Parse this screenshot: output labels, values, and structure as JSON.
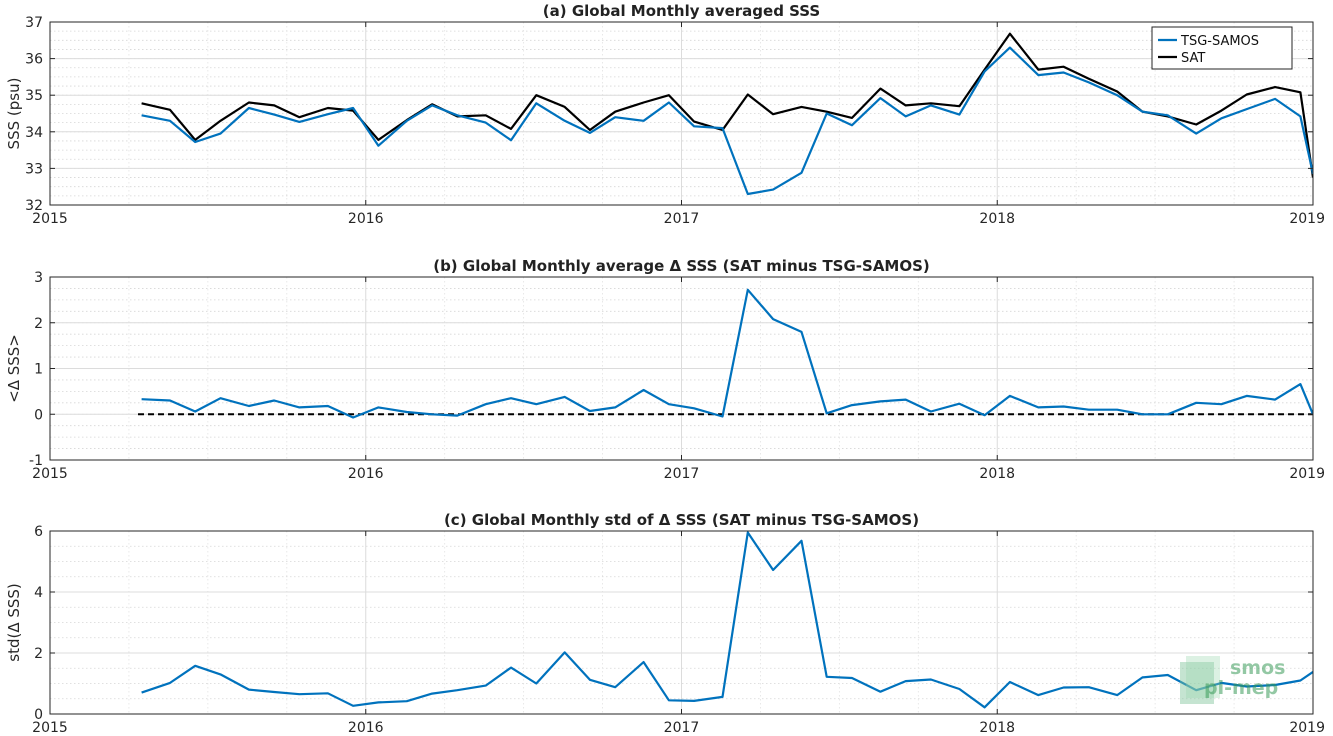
{
  "chart_data": [
    {
      "type": "line",
      "title": "(a) Global Monthly averaged SSS",
      "xlabel": "",
      "ylabel": "SSS (psu)",
      "xlim": [
        2015,
        2019
      ],
      "ylim": [
        32,
        37
      ],
      "xticks": [
        2015,
        2016,
        2017,
        2018,
        2019
      ],
      "yticks": [
        32,
        33,
        34,
        35,
        36,
        37
      ],
      "grid": true,
      "legend": "top-right",
      "x": [
        2015.29,
        2015.38,
        2015.46,
        2015.54,
        2015.63,
        2015.71,
        2015.79,
        2015.88,
        2015.96,
        2016.04,
        2016.13,
        2016.21,
        2016.29,
        2016.38,
        2016.46,
        2016.54,
        2016.63,
        2016.71,
        2016.79,
        2016.88,
        2016.96,
        2017.04,
        2017.13,
        2017.21,
        2017.29,
        2017.38,
        2017.46,
        2017.54,
        2017.63,
        2017.71,
        2017.79,
        2017.88,
        2017.96,
        2018.04,
        2018.13,
        2018.21,
        2018.29,
        2018.38,
        2018.46,
        2018.54,
        2018.63,
        2018.71,
        2018.79,
        2018.88,
        2018.96,
        2019.0
      ],
      "series": [
        {
          "name": "TSG-SAMOS",
          "color": "#0072BD",
          "values": [
            34.45,
            34.3,
            33.72,
            33.95,
            34.65,
            34.47,
            34.27,
            34.48,
            34.65,
            33.62,
            34.3,
            34.72,
            34.45,
            34.25,
            33.77,
            34.78,
            34.3,
            33.97,
            34.4,
            34.3,
            34.8,
            34.15,
            34.1,
            32.3,
            32.42,
            32.88,
            34.5,
            34.18,
            34.92,
            34.42,
            34.72,
            34.47,
            35.65,
            36.3,
            35.55,
            35.62,
            35.35,
            35.0,
            34.55,
            34.45,
            33.95,
            34.37,
            34.62,
            34.9,
            34.42,
            32.85
          ]
        },
        {
          "name": "SAT",
          "color": "#000000",
          "values": [
            34.78,
            34.6,
            33.78,
            34.3,
            34.8,
            34.72,
            34.4,
            34.65,
            34.58,
            33.78,
            34.32,
            34.75,
            34.42,
            34.45,
            34.08,
            35.0,
            34.68,
            34.05,
            34.55,
            34.8,
            35.0,
            34.28,
            34.05,
            35.02,
            34.48,
            34.68,
            34.55,
            34.38,
            35.18,
            34.72,
            34.78,
            34.7,
            35.7,
            36.68,
            35.7,
            35.78,
            35.45,
            35.1,
            34.55,
            34.42,
            34.2,
            34.58,
            35.02,
            35.22,
            35.08,
            32.75
          ]
        }
      ]
    },
    {
      "type": "line",
      "title": "(b) Global Monthly average Δ SSS (SAT minus TSG-SAMOS)",
      "xlabel": "",
      "ylabel": "<Δ SSS>",
      "xlim": [
        2015,
        2019
      ],
      "ylim": [
        -1,
        3
      ],
      "xticks": [
        2015,
        2016,
        2017,
        2018,
        2019
      ],
      "yticks": [
        -1,
        0,
        1,
        2,
        3
      ],
      "grid": true,
      "zero_line": 0,
      "x": [
        2015.29,
        2015.38,
        2015.46,
        2015.54,
        2015.63,
        2015.71,
        2015.79,
        2015.88,
        2015.96,
        2016.04,
        2016.13,
        2016.21,
        2016.29,
        2016.38,
        2016.46,
        2016.54,
        2016.63,
        2016.71,
        2016.79,
        2016.88,
        2016.96,
        2017.04,
        2017.13,
        2017.21,
        2017.29,
        2017.38,
        2017.46,
        2017.54,
        2017.63,
        2017.71,
        2017.79,
        2017.88,
        2017.96,
        2018.04,
        2018.13,
        2018.21,
        2018.29,
        2018.38,
        2018.46,
        2018.54,
        2018.63,
        2018.71,
        2018.79,
        2018.88,
        2018.96,
        2019.0
      ],
      "series": [
        {
          "color": "#0072BD",
          "values": [
            0.33,
            0.3,
            0.06,
            0.35,
            0.18,
            0.3,
            0.15,
            0.18,
            -0.07,
            0.15,
            0.05,
            0.0,
            -0.03,
            0.22,
            0.35,
            0.22,
            0.38,
            0.07,
            0.15,
            0.53,
            0.22,
            0.13,
            -0.05,
            2.72,
            2.08,
            1.8,
            0.02,
            0.2,
            0.28,
            0.32,
            0.06,
            0.23,
            -0.02,
            0.4,
            0.15,
            0.17,
            0.1,
            0.1,
            0.0,
            0.0,
            0.25,
            0.22,
            0.4,
            0.32,
            0.66,
            0.0
          ]
        }
      ]
    },
    {
      "type": "line",
      "title": "(c) Global Monthly std of Δ SSS (SAT minus TSG-SAMOS)",
      "xlabel": "",
      "ylabel": "std(Δ SSS)",
      "xlim": [
        2015,
        2019
      ],
      "ylim": [
        0,
        6
      ],
      "xticks": [
        2015,
        2016,
        2017,
        2018,
        2019
      ],
      "yticks": [
        0,
        2,
        4,
        6
      ],
      "grid": true,
      "x": [
        2015.29,
        2015.38,
        2015.46,
        2015.54,
        2015.63,
        2015.71,
        2015.79,
        2015.88,
        2015.96,
        2016.04,
        2016.13,
        2016.21,
        2016.29,
        2016.38,
        2016.46,
        2016.54,
        2016.63,
        2016.71,
        2016.79,
        2016.88,
        2016.96,
        2017.04,
        2017.13,
        2017.21,
        2017.29,
        2017.38,
        2017.46,
        2017.54,
        2017.63,
        2017.71,
        2017.79,
        2017.88,
        2017.96,
        2018.04,
        2018.13,
        2018.21,
        2018.29,
        2018.38,
        2018.46,
        2018.54,
        2018.63,
        2018.71,
        2018.79,
        2018.88,
        2018.96,
        2019.0
      ],
      "series": [
        {
          "color": "#0072BD",
          "values": [
            0.7,
            1.02,
            1.58,
            1.3,
            0.8,
            0.72,
            0.65,
            0.68,
            0.27,
            0.38,
            0.42,
            0.67,
            0.78,
            0.93,
            1.52,
            1.0,
            2.02,
            1.12,
            0.88,
            1.7,
            0.45,
            0.43,
            0.56,
            5.95,
            4.72,
            5.68,
            1.22,
            1.18,
            0.73,
            1.08,
            1.13,
            0.82,
            0.22,
            1.05,
            0.62,
            0.87,
            0.88,
            0.62,
            1.2,
            1.28,
            0.78,
            1.02,
            0.9,
            0.95,
            1.1,
            1.38
          ]
        }
      ]
    }
  ],
  "watermark": {
    "line1": "smos",
    "line2": "pi-mep",
    "color": "#3a9a5a"
  }
}
